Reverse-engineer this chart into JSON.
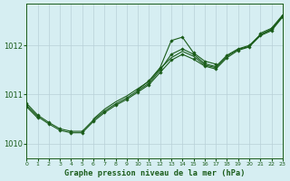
{
  "background_color": "#d6eef2",
  "line_color": "#1a5c1a",
  "grid_color": "#b8d0d8",
  "title": "Graphe pression niveau de la mer (hPa)",
  "xlim": [
    0,
    23
  ],
  "ylim": [
    1009.7,
    1012.85
  ],
  "yticks": [
    1010,
    1011,
    1012
  ],
  "xticks": [
    0,
    1,
    2,
    3,
    4,
    5,
    6,
    7,
    8,
    9,
    10,
    11,
    12,
    13,
    14,
    15,
    16,
    17,
    18,
    19,
    20,
    21,
    22,
    23
  ],
  "series": [
    {
      "x": [
        0,
        1,
        2,
        3,
        4,
        5,
        6,
        7,
        8,
        9,
        10,
        11,
        12,
        13,
        14,
        15,
        16,
        17,
        18,
        19,
        20,
        21,
        22,
        23
      ],
      "y": [
        1010.78,
        1010.55,
        1010.4,
        1010.27,
        1010.22,
        1010.22,
        1010.45,
        1010.63,
        1010.78,
        1010.9,
        1011.05,
        1011.2,
        1011.45,
        1011.7,
        1011.82,
        1011.72,
        1011.58,
        1011.52,
        1011.75,
        1011.9,
        1011.97,
        1012.2,
        1012.3,
        1012.58
      ],
      "marker": "D"
    },
    {
      "x": [
        0,
        1,
        2,
        3,
        4,
        5,
        6,
        7,
        8,
        9,
        10,
        11,
        12,
        13,
        14,
        15,
        16,
        17,
        18,
        19,
        20,
        21,
        22,
        23
      ],
      "y": [
        1010.82,
        1010.58,
        1010.43,
        1010.3,
        1010.25,
        1010.25,
        1010.48,
        1010.66,
        1010.81,
        1010.93,
        1011.08,
        1011.23,
        1011.5,
        1011.82,
        1011.93,
        1011.82,
        1011.63,
        1011.57,
        1011.8,
        1011.93,
        1012.0,
        1012.22,
        1012.33,
        1012.6
      ],
      "marker": "D"
    },
    {
      "x": [
        0,
        1,
        2,
        3,
        4,
        5,
        6,
        7,
        8,
        9,
        10,
        11,
        12,
        13,
        14,
        15,
        16,
        17,
        18,
        19,
        20,
        21,
        22,
        23
      ],
      "y": [
        1010.75,
        1010.52,
        null,
        null,
        null,
        null,
        null,
        null,
        null,
        null,
        1011.1,
        1011.28,
        1011.55,
        1012.1,
        1012.17,
        1011.85,
        1011.68,
        1011.62,
        null,
        null,
        null,
        1012.25,
        1012.35,
        1012.62
      ],
      "marker": "D"
    },
    {
      "x": [
        0,
        1,
        2,
        3,
        4,
        5,
        6,
        7,
        8,
        9,
        10,
        11,
        12,
        13,
        14,
        15,
        16,
        17,
        18,
        19,
        20,
        21,
        22,
        23
      ],
      "y": [
        null,
        null,
        null,
        null,
        null,
        null,
        1010.5,
        1010.7,
        1010.85,
        1010.97,
        1011.12,
        1011.27,
        1011.53,
        1011.75,
        1011.88,
        1011.78,
        1011.6,
        1011.55,
        1011.78,
        1011.92,
        1011.98,
        1012.22,
        1012.32,
        1012.6
      ],
      "marker": null
    }
  ]
}
